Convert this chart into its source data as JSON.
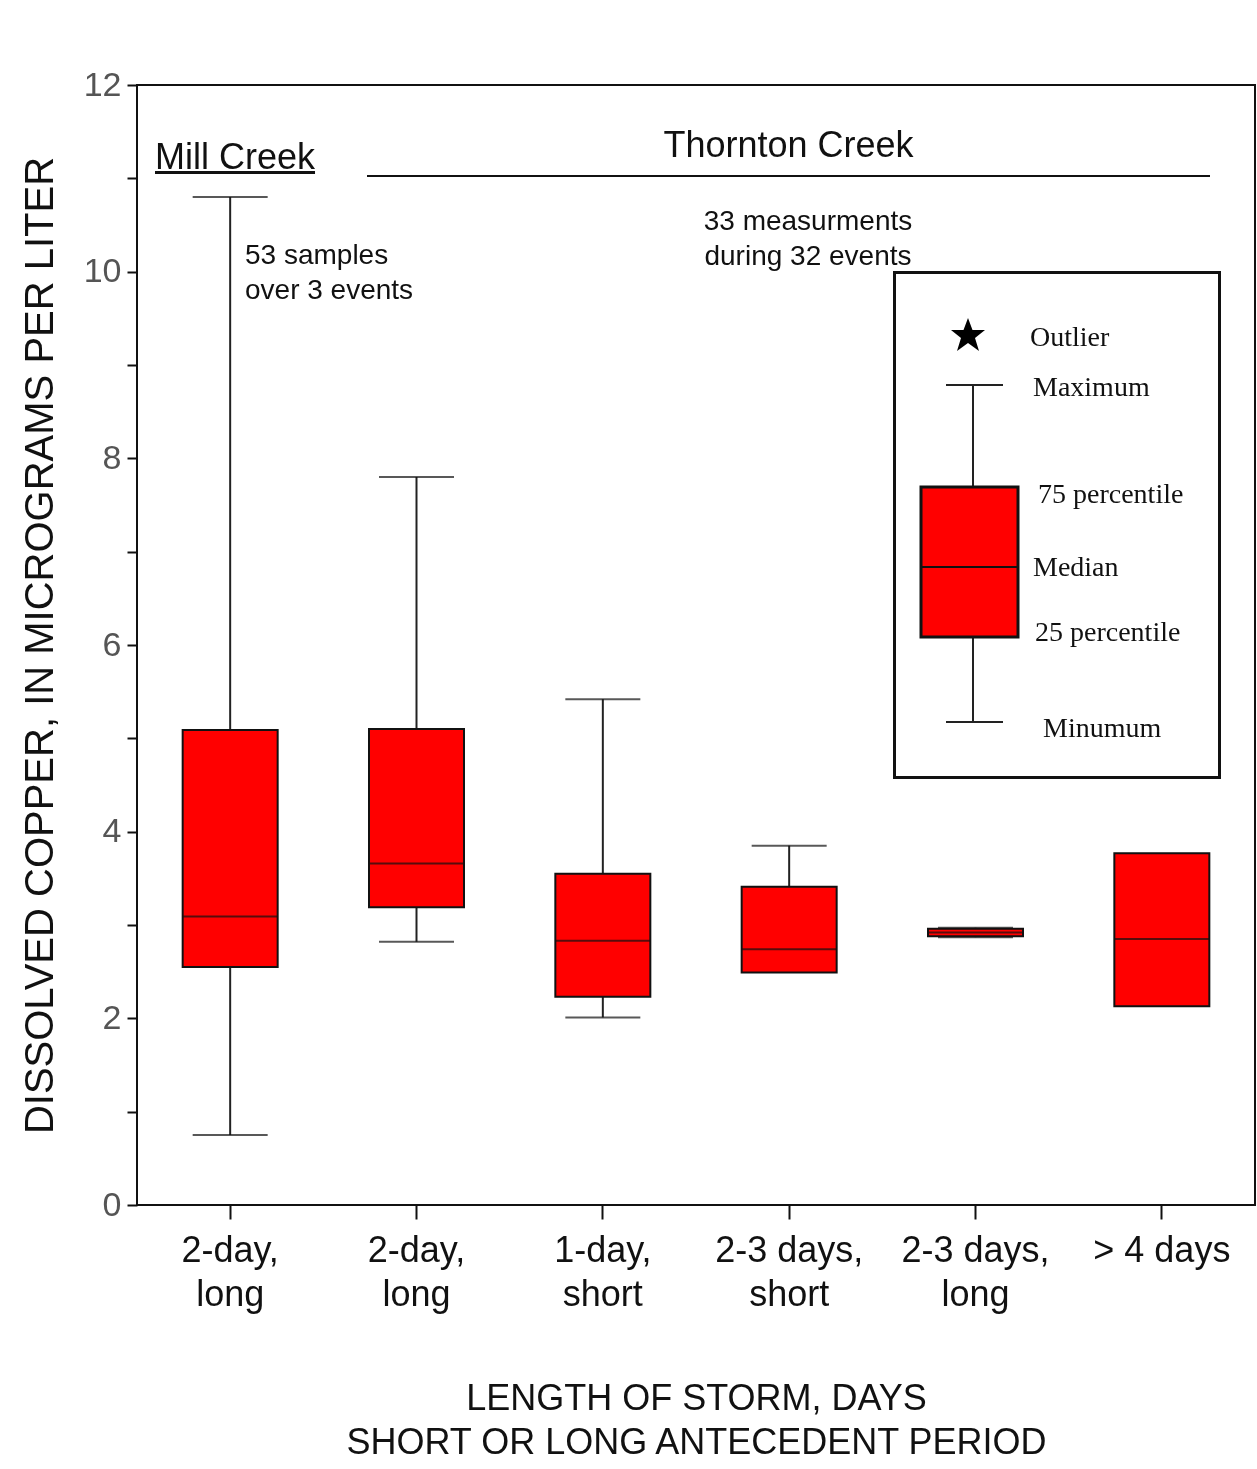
{
  "chart_data": {
    "type": "box",
    "categories": [
      "2-day,\nlong",
      "2-day,\nlong",
      "1-day,\nshort",
      "2-3 days,\nshort",
      "2-3 days,\nlong",
      "> 4 days"
    ],
    "series": [
      {
        "color": "#ff0000",
        "boxes": [
          {
            "low": 0.75,
            "q1": 2.55,
            "median": 3.09,
            "q3": 5.09,
            "high": 10.8
          },
          {
            "low": 2.82,
            "q1": 3.19,
            "median": 3.66,
            "q3": 5.1,
            "high": 7.8
          },
          {
            "low": 2.01,
            "q1": 2.23,
            "median": 2.83,
            "q3": 3.55,
            "high": 5.42
          },
          {
            "low": 2.49,
            "q1": 2.49,
            "median": 2.74,
            "q3": 3.41,
            "high": 3.85
          },
          {
            "low": 2.87,
            "q1": 2.88,
            "median": 2.92,
            "q3": 2.96,
            "high": 2.97
          },
          {
            "low": 2.13,
            "q1": 2.13,
            "median": 2.85,
            "q3": 3.77,
            "high": 3.77
          }
        ]
      }
    ],
    "xlabel": "LENGTH OF STORM, DAYS\nSHORT OR LONG ANTECEDENT PERIOD",
    "ylabel": "DISSOLVED COPPER, IN MICROGRAMS PER LITER",
    "ylim": [
      0,
      12
    ],
    "yticks": [
      0,
      {
        "value": 1,
        "label": null
      },
      2,
      {
        "value": 3,
        "label": null
      },
      4,
      {
        "value": 5,
        "label": null
      },
      6,
      {
        "value": 7,
        "label": null
      },
      8,
      {
        "value": 9,
        "label": null
      },
      10,
      {
        "value": 11,
        "label": null
      },
      12
    ],
    "grid": false,
    "annotations": [
      "Mill Creek",
      "Thornton Creek",
      "53 samples\nover 3 events",
      "33 measurments\nduring 32 events",
      "Outlier",
      "Maximum",
      "75 percentile",
      "Median",
      "25 percentile",
      "Minumum"
    ]
  }
}
